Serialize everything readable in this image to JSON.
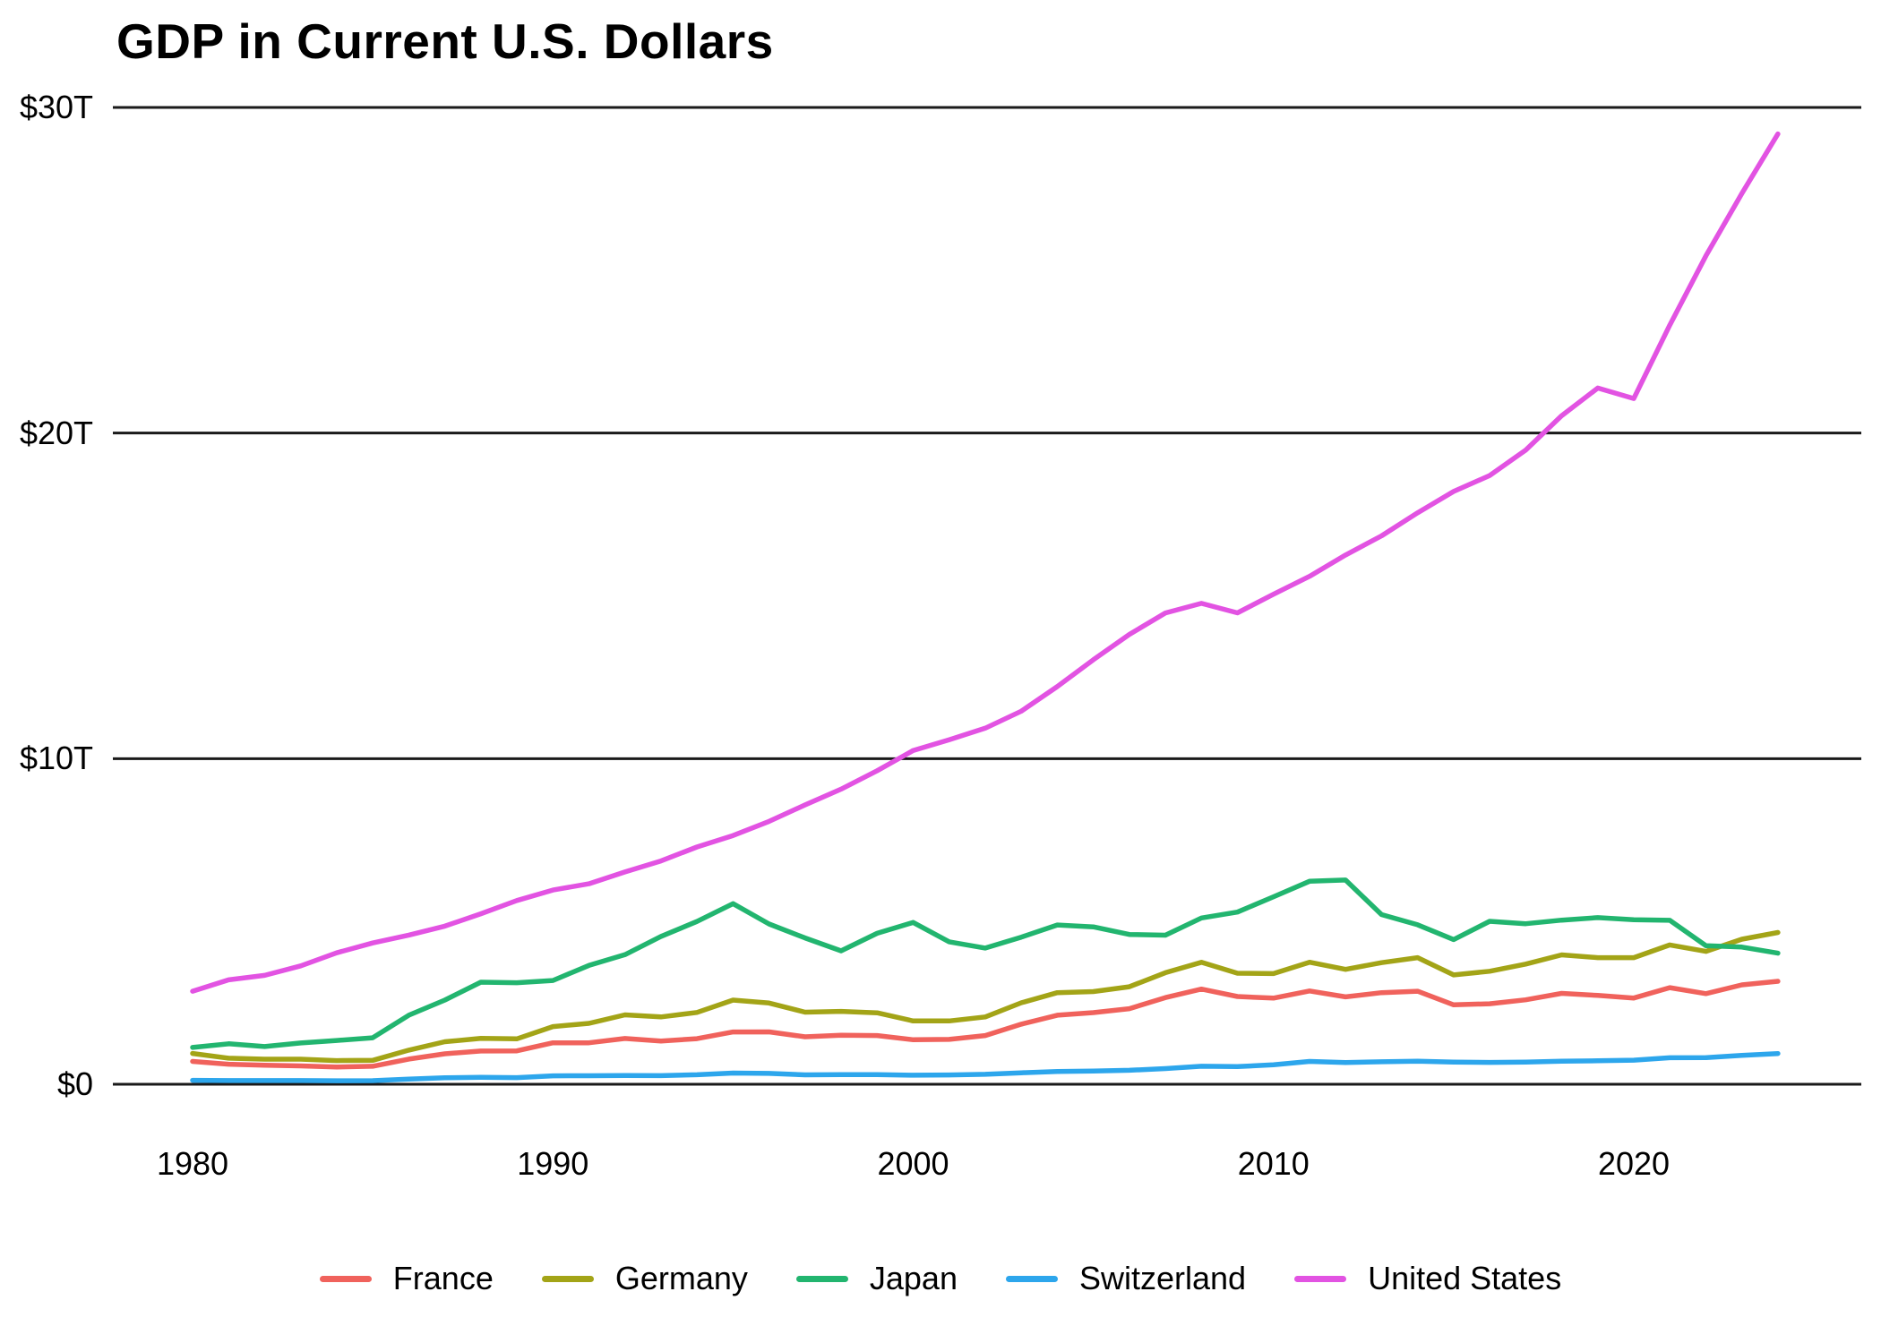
{
  "header": {
    "title": "GDP in Current U.S. Dollars"
  },
  "chart_data": {
    "type": "line",
    "title": "GDP in Current U.S. Dollars",
    "unit": "trillions of current U.S. dollars",
    "grid": "horizontal",
    "legend_position": "bottom",
    "xlim": [
      1980,
      2024
    ],
    "ylim": [
      0,
      30
    ],
    "x_ticks": [
      {
        "value": 1980,
        "label": "1980"
      },
      {
        "value": 1990,
        "label": "1990"
      },
      {
        "value": 2000,
        "label": "2000"
      },
      {
        "value": 2010,
        "label": "2010"
      },
      {
        "value": 2020,
        "label": "2020"
      }
    ],
    "y_ticks": [
      {
        "value": 0,
        "label": "$0"
      },
      {
        "value": 10,
        "label": "$10T"
      },
      {
        "value": 20,
        "label": "$20T"
      },
      {
        "value": 30,
        "label": "$30T"
      }
    ],
    "x": [
      1980,
      1981,
      1982,
      1983,
      1984,
      1985,
      1986,
      1987,
      1988,
      1989,
      1990,
      1991,
      1992,
      1993,
      1994,
      1995,
      1996,
      1997,
      1998,
      1999,
      2000,
      2001,
      2002,
      2003,
      2004,
      2005,
      2006,
      2007,
      2008,
      2009,
      2010,
      2011,
      2012,
      2013,
      2014,
      2015,
      2016,
      2017,
      2018,
      2019,
      2020,
      2021,
      2022,
      2023,
      2024
    ],
    "series": [
      {
        "name": "France",
        "color": "#F0625C",
        "values": [
          0.701,
          0.616,
          0.584,
          0.563,
          0.532,
          0.554,
          0.772,
          0.935,
          1.019,
          1.026,
          1.272,
          1.272,
          1.405,
          1.326,
          1.399,
          1.606,
          1.609,
          1.457,
          1.508,
          1.497,
          1.366,
          1.378,
          1.497,
          1.845,
          2.119,
          2.199,
          2.321,
          2.661,
          2.924,
          2.694,
          2.646,
          2.865,
          2.685,
          2.812,
          2.856,
          2.439,
          2.473,
          2.593,
          2.791,
          2.729,
          2.647,
          2.966,
          2.784,
          3.052,
          3.162
        ]
      },
      {
        "name": "Germany",
        "color": "#A3A417",
        "values": [
          0.947,
          0.8,
          0.771,
          0.77,
          0.726,
          0.734,
          1.047,
          1.307,
          1.407,
          1.394,
          1.772,
          1.869,
          2.132,
          2.068,
          2.205,
          2.585,
          2.495,
          2.213,
          2.239,
          2.194,
          1.943,
          1.944,
          2.069,
          2.501,
          2.814,
          2.846,
          2.995,
          3.425,
          3.745,
          3.411,
          3.399,
          3.749,
          3.527,
          3.733,
          3.889,
          3.357,
          3.469,
          3.69,
          3.974,
          3.889,
          3.887,
          4.278,
          4.082,
          4.456,
          4.66
        ]
      },
      {
        "name": "Japan",
        "color": "#22B56F",
        "values": [
          1.129,
          1.243,
          1.157,
          1.269,
          1.345,
          1.427,
          2.121,
          2.584,
          3.134,
          3.117,
          3.186,
          3.648,
          3.98,
          4.539,
          4.998,
          5.546,
          4.923,
          4.492,
          4.098,
          4.636,
          4.968,
          4.374,
          4.182,
          4.519,
          4.893,
          4.834,
          4.601,
          4.579,
          5.106,
          5.289,
          5.759,
          6.233,
          6.272,
          5.212,
          4.897,
          4.444,
          5.004,
          4.931,
          5.041,
          5.118,
          5.055,
          5.034,
          4.256,
          4.213,
          4.026
        ]
      },
      {
        "name": "Switzerland",
        "color": "#2DA6EC",
        "values": [
          0.122,
          0.112,
          0.114,
          0.113,
          0.108,
          0.11,
          0.157,
          0.197,
          0.212,
          0.203,
          0.258,
          0.261,
          0.27,
          0.264,
          0.292,
          0.343,
          0.333,
          0.29,
          0.298,
          0.293,
          0.279,
          0.285,
          0.306,
          0.353,
          0.394,
          0.408,
          0.43,
          0.48,
          0.554,
          0.542,
          0.598,
          0.7,
          0.668,
          0.689,
          0.71,
          0.68,
          0.672,
          0.68,
          0.706,
          0.721,
          0.74,
          0.813,
          0.818,
          0.885,
          0.942
        ]
      },
      {
        "name": "United States",
        "color": "#E253E2",
        "values": [
          2.857,
          3.207,
          3.344,
          3.634,
          4.038,
          4.339,
          4.58,
          4.855,
          5.236,
          5.642,
          5.963,
          6.158,
          6.52,
          6.859,
          7.287,
          7.64,
          8.073,
          8.578,
          9.063,
          9.631,
          10.251,
          10.582,
          10.936,
          11.458,
          12.214,
          13.037,
          13.815,
          14.474,
          14.769,
          14.478,
          15.049,
          15.6,
          16.254,
          16.843,
          17.551,
          18.206,
          18.695,
          19.477,
          20.533,
          21.381,
          21.06,
          23.315,
          25.44,
          27.361,
          29.185
        ]
      }
    ]
  },
  "style": {
    "gridline_color": "#1a1a1a",
    "text_color": "#000000",
    "background": "#ffffff"
  }
}
